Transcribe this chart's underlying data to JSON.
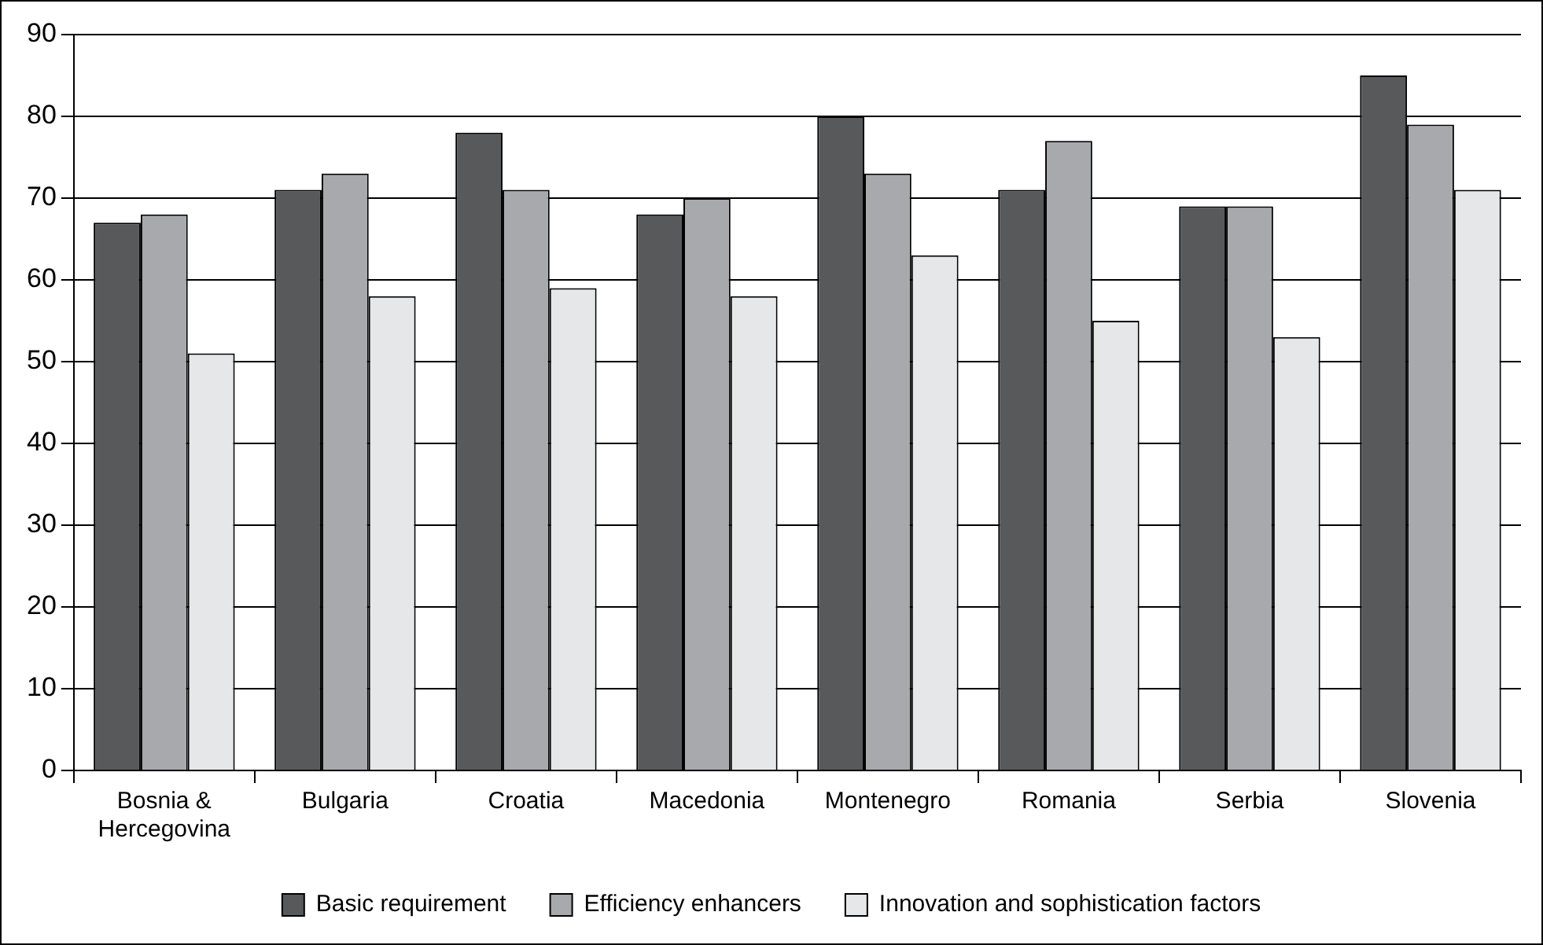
{
  "chart_data": {
    "type": "bar",
    "categories": [
      "Bosnia & Hercegovina",
      "Bulgaria",
      "Croatia",
      "Macedonia",
      "Montenegro",
      "Romania",
      "Serbia",
      "Slovenia"
    ],
    "series": [
      {
        "name": "Basic requirement",
        "color": "#58595b",
        "values": [
          67,
          71,
          78,
          68,
          80,
          71,
          69,
          85
        ]
      },
      {
        "name": "Efficiency enhancers",
        "color": "#a7a9ac",
        "values": [
          68,
          73,
          71,
          70,
          73,
          77,
          69,
          79
        ]
      },
      {
        "name": "Innovation and sophistication factors",
        "color": "#e6e7e8",
        "values": [
          51,
          58,
          59,
          58,
          63,
          55,
          53,
          71
        ]
      }
    ],
    "ylim": [
      0,
      90
    ],
    "yticks": [
      0,
      10,
      20,
      30,
      40,
      50,
      60,
      70,
      80,
      90
    ],
    "grid": "y",
    "legend": "bottom"
  }
}
